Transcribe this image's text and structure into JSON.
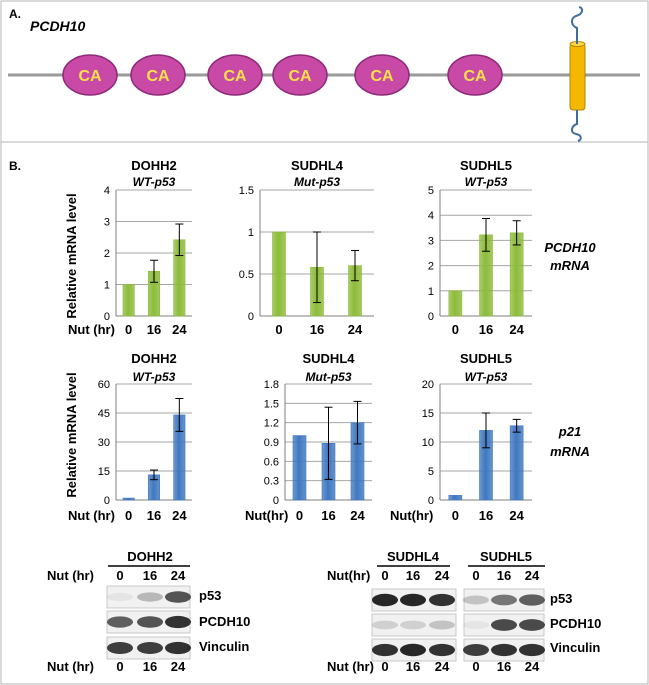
{
  "panel_a": {
    "label": "A.",
    "gene": "PCDH10",
    "domain_label": "CA",
    "domain_count": 6,
    "colors": {
      "domain_fill": "#c94aa6",
      "domain_stroke": "#8e2a78",
      "domain_text": "#ffe14a",
      "tm_fill": "#f5b800",
      "backbone": "#9a9a9a",
      "tail": "#3f6d9c"
    }
  },
  "panel_b": {
    "label": "B.",
    "ylabel": "Relative mRNA level",
    "xaxis_label": "Nut (hr)",
    "xaxis_label_p21": "Nut(hr)",
    "row_labels": [
      {
        "line1": "PCDH10",
        "line2": "mRNA"
      },
      {
        "line1": "p21",
        "line2": "mRNA"
      }
    ]
  },
  "blots": {
    "nut_label": "Nut (hr)",
    "nut_label_right": "Nut(hr)",
    "timepoints": [
      "0",
      "16",
      "24"
    ],
    "cell_lines": [
      "DOHH2",
      "SUDHL4",
      "SUDHL5"
    ],
    "proteins": [
      "p53",
      "PCDH10",
      "Vinculin"
    ],
    "bottom_label": "Nut (hr)"
  },
  "chart_data": [
    {
      "type": "bar",
      "title": "DOHH2",
      "subtitle": "WT-p53",
      "categories": [
        "0",
        "16",
        "24"
      ],
      "values": [
        1.0,
        1.42,
        2.42
      ],
      "errors": [
        0.0,
        0.35,
        0.5
      ],
      "ylim": [
        0,
        4
      ],
      "yticks": [
        "0",
        "1",
        "2",
        "3",
        "4"
      ],
      "color": "#8dbb3a",
      "grid": true
    },
    {
      "type": "bar",
      "title": "SUDHL4",
      "subtitle": "Mut-p53",
      "categories": [
        "0",
        "16",
        "24"
      ],
      "values": [
        1.0,
        0.58,
        0.6
      ],
      "errors": [
        0.0,
        0.42,
        0.18
      ],
      "ylim": [
        0,
        1.5
      ],
      "yticks": [
        "0",
        "0.5",
        "1",
        "1.5"
      ],
      "color": "#8dbb3a",
      "grid": true
    },
    {
      "type": "bar",
      "title": "SUDHL5",
      "subtitle": "WT-p53",
      "categories": [
        "0",
        "16",
        "24"
      ],
      "values": [
        1.0,
        3.22,
        3.3
      ],
      "errors": [
        0.0,
        0.65,
        0.48
      ],
      "ylim": [
        0,
        5
      ],
      "yticks": [
        "0",
        "1",
        "2",
        "3",
        "4",
        "5"
      ],
      "color": "#8dbb3a",
      "grid": true
    },
    {
      "type": "bar",
      "title": "DOHH2",
      "subtitle": "WT-p53",
      "categories": [
        "0",
        "16",
        "24"
      ],
      "values": [
        1.0,
        13.0,
        44.0
      ],
      "errors": [
        0.0,
        2.5,
        8.5
      ],
      "ylim": [
        0,
        60
      ],
      "yticks": [
        "0",
        "15",
        "30",
        "45",
        "60"
      ],
      "color": "#3f78c0",
      "grid": true
    },
    {
      "type": "bar",
      "title": "SUDHL4",
      "subtitle": "Mut-p53",
      "categories": [
        "0",
        "16",
        "24"
      ],
      "values": [
        1.0,
        0.88,
        1.2
      ],
      "errors": [
        0.0,
        0.56,
        0.33
      ],
      "ylim": [
        0,
        1.8
      ],
      "yticks": [
        "0",
        "0.3",
        "0.6",
        "0.9",
        "1.2",
        "1.5",
        "1.8"
      ],
      "color": "#3f78c0",
      "grid": true
    },
    {
      "type": "bar",
      "title": "SUDHL5",
      "subtitle": "WT-p53",
      "categories": [
        "0",
        "16",
        "24"
      ],
      "values": [
        0.8,
        12.0,
        12.8
      ],
      "errors": [
        0.0,
        3.0,
        1.1
      ],
      "ylim": [
        0,
        20
      ],
      "yticks": [
        "0",
        "5",
        "10",
        "15",
        "20"
      ],
      "color": "#3f78c0",
      "grid": true
    }
  ]
}
